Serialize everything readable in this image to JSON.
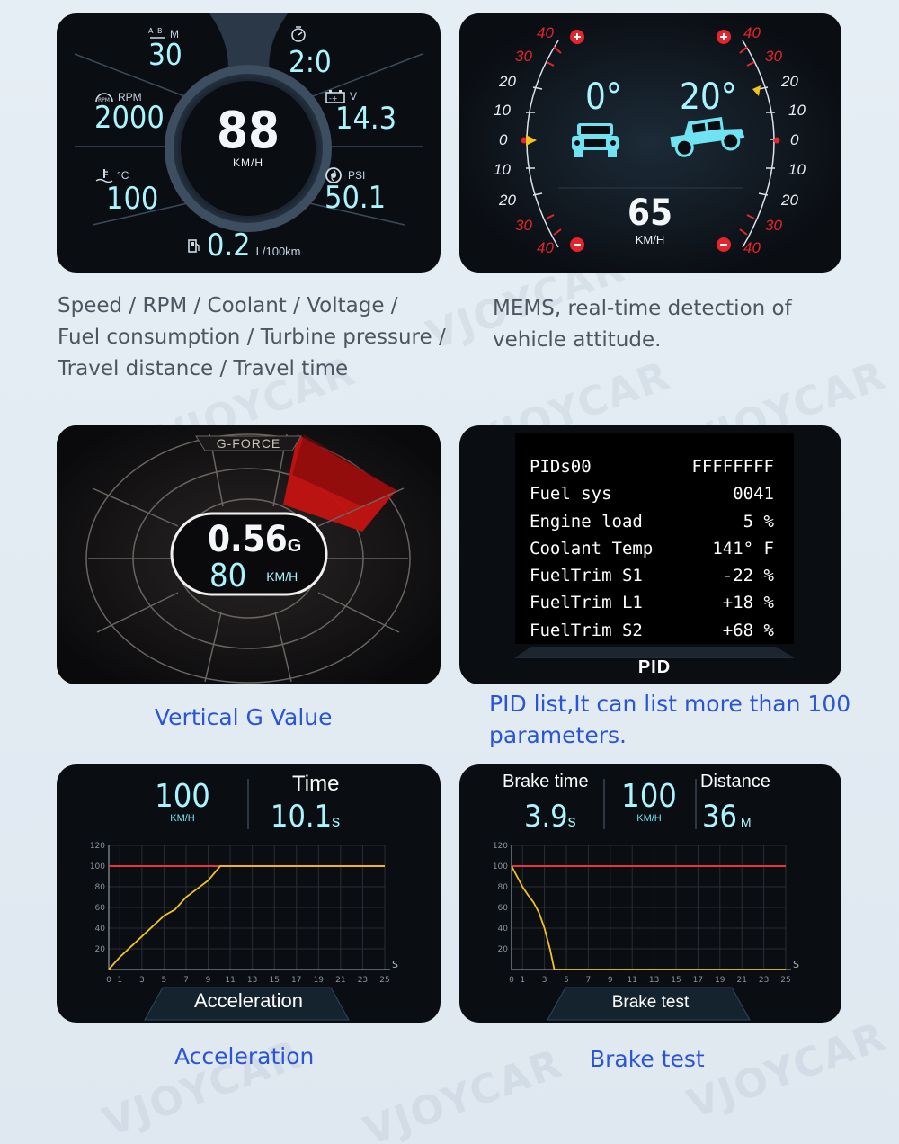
{
  "panel1": {
    "trip_distance": {
      "label": "M",
      "value": "30"
    },
    "trip_time": {
      "value": "2:0"
    },
    "rpm": {
      "label": "RPM",
      "value": "2000"
    },
    "voltage": {
      "label": "V",
      "value": "14.3"
    },
    "speed": {
      "value": "88",
      "unit": "KM/H"
    },
    "coolant": {
      "label": "°C",
      "value": "100"
    },
    "turbo": {
      "label": "PSI",
      "value": "50.1"
    },
    "fuel": {
      "value": "0.2",
      "unit": "L/100km"
    },
    "icons": [
      "ab-distance-icon",
      "timer-icon",
      "rpm-icon",
      "battery-icon",
      "coolant-icon",
      "turbo-icon",
      "fuel-pump-icon"
    ]
  },
  "caption1": {
    "line1": "Speed  / RPM / Coolant / Voltage /",
    "line2": "Fuel consumption /  Turbine pressure /",
    "line3": "Travel distance / Travel time"
  },
  "panel2": {
    "pitch": "0°",
    "roll": "20°",
    "speed": "65",
    "unit": "KM/H",
    "scale_left": [
      "40",
      "30",
      "20",
      "10",
      "0",
      "10",
      "20",
      "30",
      "40"
    ],
    "scale_right": [
      "40",
      "30",
      "20",
      "10",
      "0",
      "10",
      "20",
      "30",
      "40"
    ],
    "colors": {
      "red": "#e5242b",
      "yellow": "#f4c21a",
      "jeep": "#6fe3f1"
    }
  },
  "caption2": {
    "line1": "MEMS, real-time detection of",
    "line2": "vehicle attitude."
  },
  "panel3": {
    "title": "G-FORCE",
    "g_value": "0.56",
    "g_unit": "G",
    "speed": "80",
    "speed_unit": "KM/H"
  },
  "caption3": {
    "text": "Vertical G Value"
  },
  "panel4": {
    "rows": [
      {
        "name": "PIDs00",
        "value": "FFFFFFFF"
      },
      {
        "name": "Fuel sys",
        "value": "0041"
      },
      {
        "name": "Engine load",
        "value": "5 %"
      },
      {
        "name": "Coolant Temp",
        "value": "141° F"
      },
      {
        "name": "FuelTrim S1",
        "value": "-22 %"
      },
      {
        "name": "FuelTrim L1",
        "value": "+18 %"
      },
      {
        "name": "FuelTrim S2",
        "value": "+68 %"
      }
    ],
    "footer": "PID"
  },
  "caption4": {
    "line1": "PID list,It can list more than 100",
    "line2": "parameters."
  },
  "panel5": {
    "speed": "100",
    "speed_unit": "KM/H",
    "time_label": "Time",
    "time_value": "10.1",
    "time_unit": "s",
    "footer": "Acceleration",
    "chart_data": {
      "type": "line",
      "title": "",
      "x_unit": "S",
      "y_ticks": [
        120,
        100,
        80,
        60,
        40,
        20
      ],
      "x_ticks": [
        0,
        1,
        3,
        5,
        7,
        9,
        11,
        13,
        15,
        17,
        19,
        21,
        23,
        25
      ],
      "ylim": [
        0,
        120
      ],
      "xlim": [
        0,
        25
      ],
      "reference_line": 100,
      "series": [
        {
          "values_x": [
            0,
            1,
            2,
            3,
            4,
            5,
            6,
            7,
            8,
            9,
            10.1,
            25
          ],
          "values_y": [
            0,
            12,
            22,
            32,
            42,
            52,
            58,
            70,
            78,
            86,
            100,
            100
          ]
        }
      ],
      "colors": {
        "reference": "#e8343a",
        "series": "#f2c41b"
      }
    }
  },
  "caption5": {
    "text": "Acceleration"
  },
  "panel6": {
    "brake_label": "Brake time",
    "brake_value": "3.9",
    "brake_unit": "s",
    "speed": "100",
    "speed_unit": "KM/H",
    "distance_label": "Distance",
    "distance_value": "36",
    "distance_unit": "M",
    "footer": "Brake test",
    "chart_data": {
      "type": "line",
      "title": "",
      "x_unit": "S",
      "y_ticks": [
        120,
        100,
        80,
        60,
        40,
        20
      ],
      "x_ticks": [
        0,
        1,
        3,
        5,
        7,
        9,
        11,
        13,
        15,
        17,
        19,
        21,
        23,
        25
      ],
      "ylim": [
        0,
        120
      ],
      "xlim": [
        0,
        25
      ],
      "reference_line": 100,
      "series": [
        {
          "values_x": [
            0,
            0.5,
            1,
            1.5,
            2,
            2.5,
            3,
            3.5,
            3.9,
            25
          ],
          "values_y": [
            100,
            90,
            80,
            72,
            65,
            55,
            40,
            20,
            0,
            0
          ]
        }
      ],
      "colors": {
        "reference": "#e8343a",
        "series": "#f2c41b"
      }
    }
  },
  "caption6": {
    "text": "Brake test"
  },
  "watermark": "VJOYCAR"
}
